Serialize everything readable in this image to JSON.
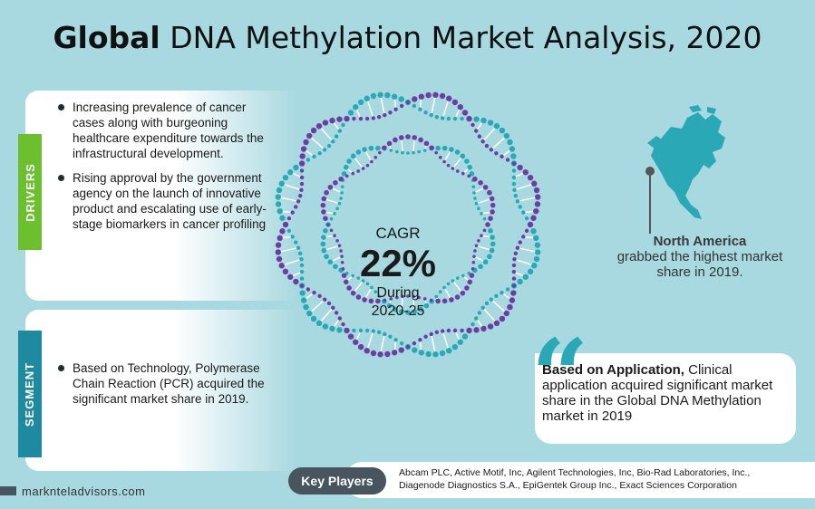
{
  "title": {
    "bold": "Global",
    "rest": "DNA Methylation Market Analysis, 2020"
  },
  "drivers": {
    "tab_label": "DRIVERS",
    "items": [
      "Increasing prevalence of cancer cases along with burgeoning healthcare expenditure towards the infrastructural development.",
      "Rising approval by the government agency on the launch of innovative product and escalating use of early-stage biomarkers in cancer profiling"
    ]
  },
  "segment": {
    "tab_label": "SEGMENT",
    "items": [
      "Based on Technology, Polymerase Chain Reaction (PCR) acquired the significant market share in 2019."
    ]
  },
  "cagr": {
    "label": "CAGR",
    "value": "22%",
    "during_label": "During",
    "period": "2020-25"
  },
  "north_america": {
    "region": "North America",
    "text": "grabbed the highest market share in 2019."
  },
  "application": {
    "lead": "Based on Application,",
    "text": "Clinical application acquired significant market share in the Global DNA Methylation market in 2019"
  },
  "key_players": {
    "label": "Key Players",
    "line1": "Abcam PLC, Active Motif, Inc, Agilent Technologies, Inc, Bio-Rad Laboratories, Inc.,",
    "line2": "Diagenode Diagnostics S.A., EpiGentek Group Inc., Exact Sciences Corporation"
  },
  "footer": {
    "site": "marknteladvisors.com"
  },
  "colors": {
    "background": "#a8d8e0",
    "drivers_tab": "#6cbf2e",
    "segment_tab": "#1e8aa0",
    "teal": "#2aa8b5",
    "purple": "#6b3fa0",
    "dark_badge": "#48545e"
  },
  "icons": {
    "map": "north-america-map-icon",
    "quote": "quote-icon",
    "dna": "dna-ring-icon"
  }
}
